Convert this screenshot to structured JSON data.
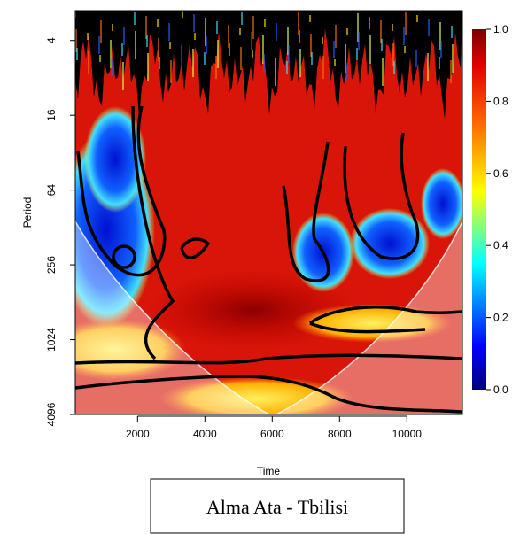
{
  "chart_data": {
    "type": "wavelet-coherence",
    "x_label": "Time",
    "y_label": "Period",
    "xlim": [
      150,
      11650
    ],
    "xticks": [
      2000,
      4000,
      6000,
      8000,
      10000
    ],
    "ylim": [
      2.3,
      4096
    ],
    "yticks": [
      4,
      16,
      64,
      256,
      1024,
      4096
    ],
    "y_log": true,
    "y_reversed": true,
    "colorbar_lim": [
      0,
      1
    ],
    "colorbar_ticks": [
      {
        "value": 0,
        "label": "0.0"
      },
      0.2,
      0.4,
      0.6,
      0.8,
      {
        "value": 1,
        "label": "1.0"
      }
    ],
    "caption": "Alma Ata - Tbilisi"
  }
}
